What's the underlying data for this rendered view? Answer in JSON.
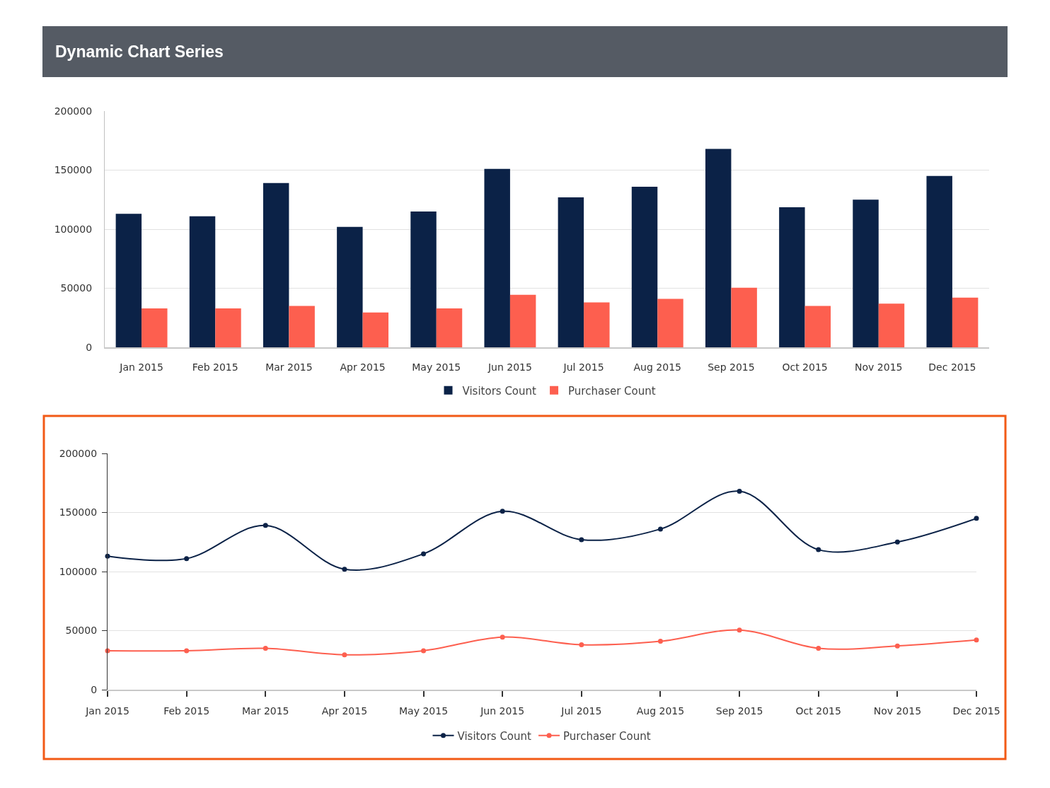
{
  "chart_data": [
    {
      "type": "bar",
      "title": "Dynamic Chart Series",
      "categories": [
        "Jan 2015",
        "Feb 2015",
        "Mar 2015",
        "Apr 2015",
        "May 2015",
        "Jun 2015",
        "Jul 2015",
        "Aug 2015",
        "Sep 2015",
        "Oct 2015",
        "Nov 2015",
        "Dec 2015"
      ],
      "series": [
        {
          "name": "Visitors Count",
          "color": "#0b2247",
          "values": [
            113000,
            111000,
            139000,
            102000,
            115000,
            151000,
            127000,
            136000,
            168000,
            118500,
            125000,
            145000
          ]
        },
        {
          "name": "Purchaser Count",
          "color": "#fd5f4f",
          "values": [
            33000,
            33000,
            35000,
            29500,
            33000,
            44500,
            38000,
            41000,
            50500,
            35000,
            37000,
            42000
          ]
        }
      ],
      "ylim": [
        0,
        200000
      ],
      "yticks": [
        0,
        50000,
        100000,
        150000,
        200000
      ],
      "grid": "y",
      "legend": "bottom"
    },
    {
      "type": "line",
      "categories": [
        "Jan 2015",
        "Feb 2015",
        "Mar 2015",
        "Apr 2015",
        "May 2015",
        "Jun 2015",
        "Jul 2015",
        "Aug 2015",
        "Sep 2015",
        "Oct 2015",
        "Nov 2015",
        "Dec 2015"
      ],
      "series": [
        {
          "name": "Visitors Count",
          "color": "#0b2247",
          "values": [
            113000,
            111000,
            139000,
            102000,
            115000,
            151000,
            127000,
            136000,
            168000,
            118500,
            125000,
            145000
          ]
        },
        {
          "name": "Purchaser Count",
          "color": "#fd5f4f",
          "values": [
            33000,
            33000,
            35000,
            29500,
            33000,
            44500,
            38000,
            41000,
            50500,
            35000,
            37000,
            42000
          ]
        }
      ],
      "ylim": [
        0,
        200000
      ],
      "yticks": [
        0,
        50000,
        100000,
        150000,
        200000
      ],
      "grid": "y",
      "legend": "bottom",
      "marker": "circle",
      "line_style": "solid"
    }
  ]
}
